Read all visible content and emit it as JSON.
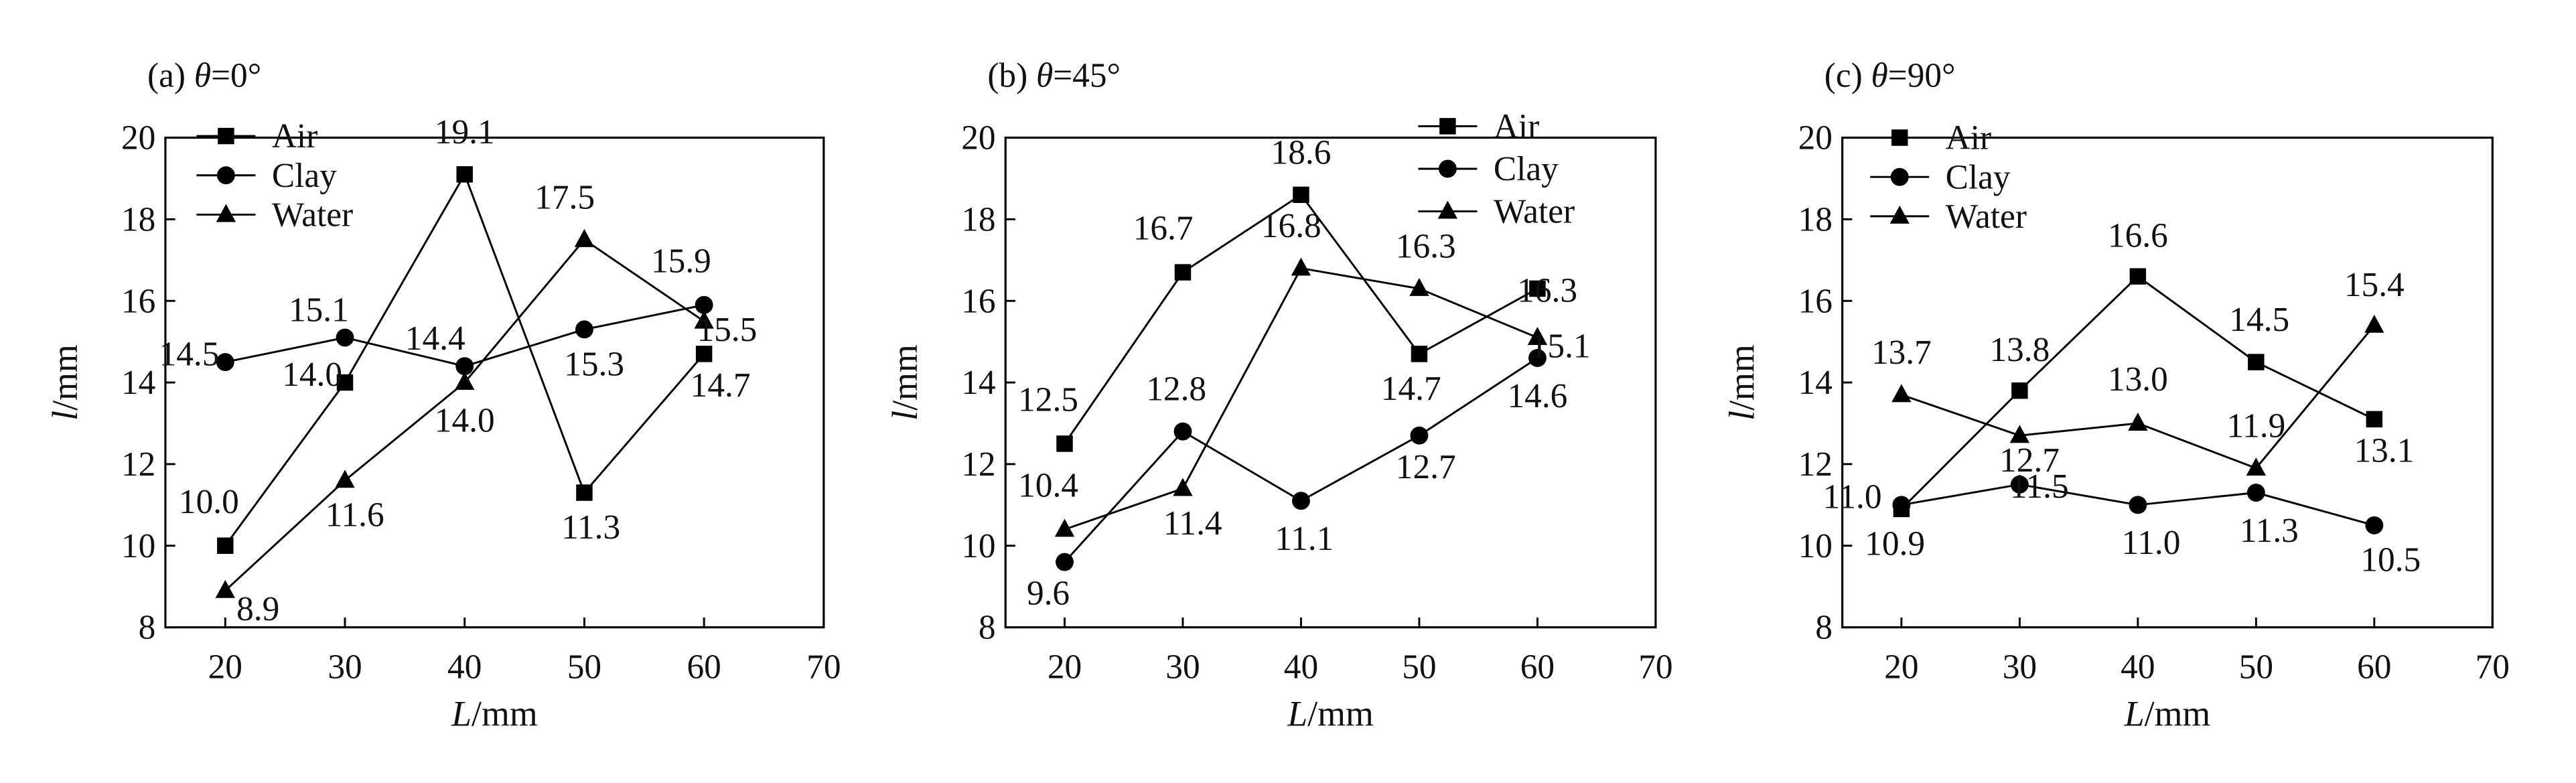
{
  "chart_data": [
    {
      "type": "line",
      "panel_label": "(a) ",
      "theta_symbol": "θ",
      "theta_value": "=0°",
      "xlabel_var": "L",
      "xlabel_unit": "/mm",
      "ylabel_var": "l",
      "ylabel_unit": "/mm",
      "xlim": [
        15,
        70
      ],
      "ylim": [
        8,
        20
      ],
      "xticks": [
        "20",
        "30",
        "40",
        "50",
        "60",
        "70"
      ],
      "yticks": [
        "8",
        "10",
        "12",
        "14",
        "16",
        "18",
        "20"
      ],
      "x": [
        20,
        30,
        40,
        50,
        60
      ],
      "legend_position": "top-left",
      "series": [
        {
          "name": "Air",
          "marker": "square",
          "values": [
            10.0,
            14.0,
            19.1,
            11.3,
            14.7
          ],
          "labels": [
            "10.0",
            "14.0",
            "19.1",
            "11.3",
            "14.7"
          ]
        },
        {
          "name": "Clay",
          "marker": "circle",
          "values": [
            14.5,
            15.1,
            14.4,
            15.3,
            15.9
          ],
          "labels": [
            "14.5",
            "15.1",
            "14.4",
            "15.3",
            "15.9"
          ]
        },
        {
          "name": "Water",
          "marker": "triangle",
          "values": [
            8.9,
            11.6,
            14.0,
            17.5,
            15.5
          ],
          "labels": [
            "8.9",
            "11.6",
            "14.0",
            "17.5",
            "15.5"
          ]
        }
      ]
    },
    {
      "type": "line",
      "panel_label": "(b) ",
      "theta_symbol": "θ",
      "theta_value": "=45°",
      "xlabel_var": "L",
      "xlabel_unit": "/mm",
      "ylabel_var": "l",
      "ylabel_unit": "/mm",
      "xlim": [
        15,
        70
      ],
      "ylim": [
        8,
        20
      ],
      "xticks": [
        "20",
        "30",
        "40",
        "50",
        "60",
        "70"
      ],
      "yticks": [
        "8",
        "10",
        "12",
        "14",
        "16",
        "18",
        "20"
      ],
      "x": [
        20,
        30,
        40,
        50,
        60
      ],
      "legend_position": "top-right",
      "series": [
        {
          "name": "Air",
          "marker": "square",
          "values": [
            12.5,
            16.7,
            18.6,
            14.7,
            16.3
          ],
          "labels": [
            "12.5",
            "16.7",
            "18.6",
            "14.7",
            "16.3"
          ]
        },
        {
          "name": "Clay",
          "marker": "circle",
          "values": [
            9.6,
            12.8,
            11.1,
            12.7,
            14.6
          ],
          "labels": [
            "9.6",
            "12.8",
            "11.1",
            "12.7",
            "14.6"
          ]
        },
        {
          "name": "Water",
          "marker": "triangle",
          "values": [
            10.4,
            11.4,
            16.8,
            16.3,
            15.1
          ],
          "labels": [
            "10.4",
            "11.4",
            "16.8",
            "16.3",
            "15.1"
          ]
        }
      ]
    },
    {
      "type": "line",
      "panel_label": "(c) ",
      "theta_symbol": "θ",
      "theta_value": "=90°",
      "xlabel_var": "L",
      "xlabel_unit": "/mm",
      "ylabel_var": "l",
      "ylabel_unit": "/mm",
      "xlim": [
        15,
        70
      ],
      "ylim": [
        8,
        20
      ],
      "xticks": [
        "20",
        "30",
        "40",
        "50",
        "60",
        "70"
      ],
      "yticks": [
        "8",
        "10",
        "12",
        "14",
        "16",
        "18",
        "20"
      ],
      "x": [
        20,
        30,
        40,
        50,
        60
      ],
      "legend_position": "top-left",
      "series": [
        {
          "name": "Air",
          "marker": "square",
          "values": [
            10.9,
            13.8,
            16.6,
            14.5,
            13.1
          ],
          "labels": [
            "10.9",
            "13.8",
            "16.6",
            "14.5",
            "13.1"
          ]
        },
        {
          "name": "Clay",
          "marker": "circle",
          "values": [
            11.0,
            11.5,
            11.0,
            11.3,
            10.5
          ],
          "labels": [
            "11.0",
            "11.5",
            "11.0",
            "11.3",
            "10.5"
          ]
        },
        {
          "name": "Water",
          "marker": "triangle",
          "values": [
            13.7,
            12.7,
            13.0,
            11.9,
            15.4
          ],
          "labels": [
            "13.7",
            "12.7",
            "13.0",
            "11.9",
            "15.4"
          ]
        }
      ]
    }
  ]
}
